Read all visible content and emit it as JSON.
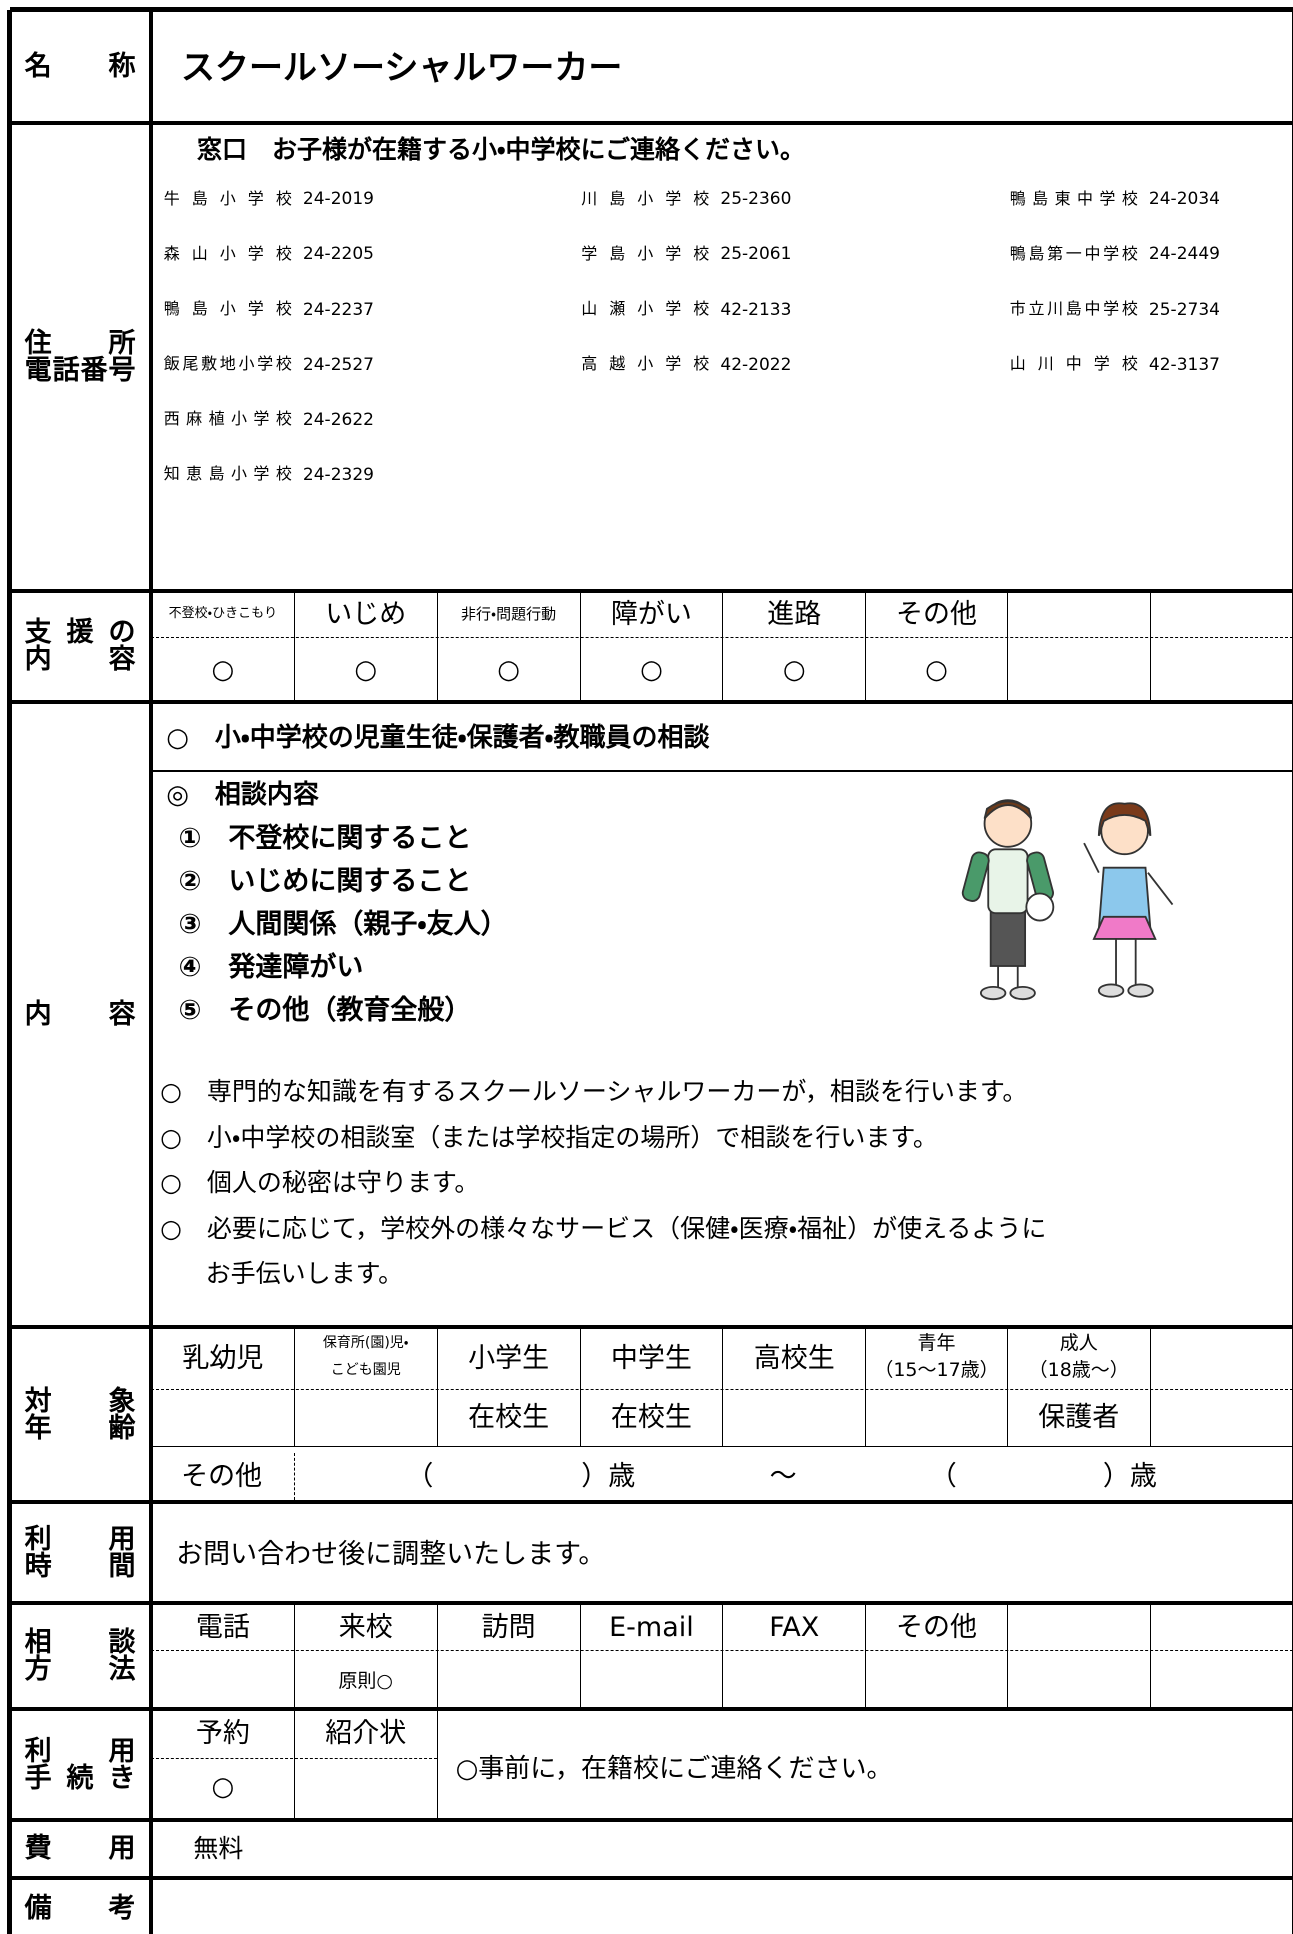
{
  "name": {
    "label": [
      "名　称"
    ],
    "value": "スクールソーシャルワーカー"
  },
  "address": {
    "label": [
      "住　　所",
      "電話番号"
    ],
    "heading": "窓口　お子様が在籍する小・中学校にご連絡ください。",
    "columns": [
      [
        {
          "school": "牛島小学校",
          "phone": "24-2019"
        },
        {
          "school": "森山小学校",
          "phone": "24-2205"
        },
        {
          "school": "鴨島小学校",
          "phone": "24-2237"
        },
        {
          "school": "飯尾敷地小学校",
          "phone": "24-2527"
        },
        {
          "school": "西麻植小学校",
          "phone": "24-2622"
        },
        {
          "school": "知恵島小学校",
          "phone": "24-2329"
        }
      ],
      [
        {
          "school": "川島小学校",
          "phone": "25-2360"
        },
        {
          "school": "学島小学校",
          "phone": "25-2061"
        },
        {
          "school": "山瀬小学校",
          "phone": "42-2133"
        },
        {
          "school": "高越小学校",
          "phone": "42-2022"
        }
      ],
      [
        {
          "school": "鴨島東中学校",
          "phone": "24-2034"
        },
        {
          "school": "鴨島第一中学校",
          "phone": "24-2449"
        },
        {
          "school": "市立川島中学校",
          "phone": "25-2734"
        },
        {
          "school": "山川中学校",
          "phone": "42-3137"
        }
      ]
    ]
  },
  "support": {
    "label": [
      "支援の",
      "内　容"
    ],
    "headers": [
      "不登校・ひきこもり",
      "いじめ",
      "非行・問題行動",
      "障がい",
      "進路",
      "その他"
    ],
    "marks": [
      "○",
      "○",
      "○",
      "○",
      "○",
      "○"
    ]
  },
  "content": {
    "label": [
      "内　容"
    ],
    "heading": "○　小・中学校の児童生徒・保護者・教職員の相談",
    "subheading": "◎　相談内容",
    "items": [
      "①　不登校に関すること",
      "②　いじめに関すること",
      "③　人間関係（親子・友人）",
      "④　発達障がい",
      "⑤　その他（教育全般）"
    ],
    "notes": [
      [
        "○　専門的な知識を有するスクールソーシャルワーカーが，相談を行います。"
      ],
      [
        "○　小・中学校の相談室（または学校指定の場所）で相談を行います。"
      ],
      [
        "○　個人の秘密は守ります。"
      ],
      [
        "○　必要に応じて，学校外の様々なサービス（保健・医療・福祉）が使えるように",
        "お手伝いします。"
      ]
    ]
  },
  "target": {
    "label": [
      "対　象",
      "年　齢"
    ],
    "headers": [
      [
        "乳幼児"
      ],
      [
        "保育所(園)児・",
        "こども園児"
      ],
      [
        "小学生"
      ],
      [
        "中学生"
      ],
      [
        "高校生"
      ],
      [
        "青年",
        "（15～17歳）"
      ],
      [
        "成人",
        "（18歳～）"
      ]
    ],
    "second_row": [
      null,
      null,
      "在校生",
      "在校生",
      null,
      null,
      "保護者"
    ],
    "other": [
      "その他",
      "（",
      "）歳",
      "～",
      "（",
      "）歳"
    ]
  },
  "hours": {
    "label": [
      "利　用",
      "時　間"
    ],
    "value": "お問い合わせ後に調整いたします。"
  },
  "method": {
    "label": [
      "相　談",
      "方　法"
    ],
    "headers": [
      "電話",
      "来校",
      "訪問",
      "E-mail",
      "FAX",
      "その他"
    ],
    "marks": [
      null,
      "原則○",
      null,
      null,
      null,
      null
    ]
  },
  "procedure": {
    "label": [
      "利　用",
      "手続き"
    ],
    "headers": [
      "予約",
      "紹介状"
    ],
    "marks": [
      "○",
      null
    ],
    "note": "○事前に，在籍校にご連絡ください。"
  },
  "cost": {
    "label": [
      "費　用"
    ],
    "value": "無料"
  },
  "remarks": {
    "label": [
      "備　考"
    ]
  }
}
